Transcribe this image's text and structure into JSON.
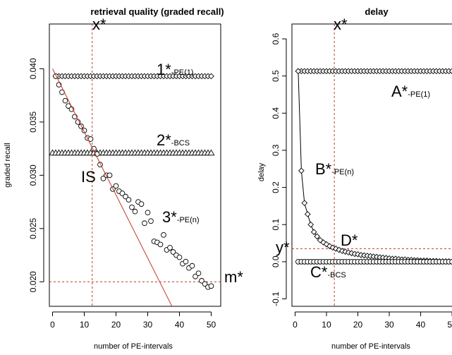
{
  "chart_data": [
    {
      "type": "scatter",
      "title": "retrieval quality (graded recall)",
      "xlabel": "number of PE-intervals",
      "ylabel": "graded recall",
      "xlim": [
        -1,
        53
      ],
      "ylim": [
        0.0177,
        0.0442
      ],
      "xticks": [
        "0",
        "10",
        "20",
        "30",
        "40",
        "50"
      ],
      "yticks": [
        "0.020",
        "0.025",
        "0.030",
        "0.035",
        "0.040"
      ],
      "grid": false,
      "series": [
        {
          "name": "1*-PE(1)",
          "marker": "diamond",
          "line": "none",
          "x": [
            1,
            2,
            3,
            4,
            5,
            6,
            7,
            8,
            9,
            10,
            11,
            12,
            13,
            14,
            15,
            16,
            17,
            18,
            19,
            20,
            21,
            22,
            23,
            24,
            25,
            26,
            27,
            28,
            29,
            30,
            31,
            32,
            33,
            34,
            35,
            36,
            37,
            38,
            39,
            40,
            41,
            42,
            43,
            44,
            45,
            46,
            47,
            48,
            49,
            50
          ],
          "values": [
            0.0393,
            0.0393,
            0.0393,
            0.0393,
            0.0393,
            0.0393,
            0.0393,
            0.0393,
            0.0393,
            0.0393,
            0.0393,
            0.0393,
            0.0393,
            0.0393,
            0.0393,
            0.0393,
            0.0393,
            0.0393,
            0.0393,
            0.0393,
            0.0393,
            0.0393,
            0.0393,
            0.0393,
            0.0393,
            0.0393,
            0.0393,
            0.0393,
            0.0393,
            0.0393,
            0.0393,
            0.0393,
            0.0393,
            0.0393,
            0.0393,
            0.0393,
            0.0393,
            0.0393,
            0.0393,
            0.0393,
            0.0393,
            0.0393,
            0.0393,
            0.0393,
            0.0393,
            0.0393,
            0.0393,
            0.0393,
            0.0393,
            0.0393
          ]
        },
        {
          "name": "2*-BCS",
          "marker": "triangle",
          "line": "none",
          "x": [
            0,
            1,
            2,
            3,
            4,
            5,
            6,
            7,
            8,
            9,
            10,
            11,
            12,
            13,
            14,
            15,
            16,
            17,
            18,
            19,
            20,
            21,
            22,
            23,
            24,
            25,
            26,
            27,
            28,
            29,
            30,
            31,
            32,
            33,
            34,
            35,
            36,
            37,
            38,
            39,
            40,
            41,
            42,
            43,
            44,
            45,
            46,
            47,
            48,
            49,
            50
          ],
          "values": [
            0.0321,
            0.0321,
            0.0321,
            0.0321,
            0.0321,
            0.0321,
            0.0321,
            0.0321,
            0.0321,
            0.0321,
            0.0321,
            0.0321,
            0.0321,
            0.0321,
            0.0321,
            0.0321,
            0.0321,
            0.0321,
            0.0321,
            0.0321,
            0.0321,
            0.0321,
            0.0321,
            0.0321,
            0.0321,
            0.0321,
            0.0321,
            0.0321,
            0.0321,
            0.0321,
            0.0321,
            0.0321,
            0.0321,
            0.0321,
            0.0321,
            0.0321,
            0.0321,
            0.0321,
            0.0321,
            0.0321,
            0.0321,
            0.0321,
            0.0321,
            0.0321,
            0.0321,
            0.0321,
            0.0321,
            0.0321,
            0.0321,
            0.0321,
            0.0321
          ]
        },
        {
          "name": "3*-PE(n)",
          "marker": "circle",
          "line": "none",
          "x": [
            1,
            2,
            3,
            4,
            5,
            6,
            7,
            8,
            9,
            10,
            11,
            12,
            13,
            14,
            15,
            16,
            17,
            18,
            19,
            20,
            21,
            22,
            23,
            24,
            25,
            26,
            27,
            28,
            29,
            30,
            31,
            32,
            33,
            34,
            35,
            36,
            37,
            38,
            39,
            40,
            41,
            42,
            43,
            44,
            45,
            46,
            47,
            48,
            49,
            50
          ],
          "values": [
            0.0393,
            0.0385,
            0.0378,
            0.037,
            0.0365,
            0.0362,
            0.0355,
            0.035,
            0.0346,
            0.0342,
            0.0335,
            0.0334,
            0.0325,
            0.032,
            0.031,
            0.0297,
            0.03,
            0.03,
            0.0287,
            0.029,
            0.0285,
            0.0283,
            0.028,
            0.0277,
            0.027,
            0.0266,
            0.0275,
            0.0273,
            0.0255,
            0.0265,
            0.0257,
            0.0238,
            0.0237,
            0.0235,
            0.0244,
            0.023,
            0.0232,
            0.0228,
            0.0225,
            0.0223,
            0.0217,
            0.0219,
            0.0213,
            0.0215,
            0.0205,
            0.0208,
            0.0201,
            0.0198,
            0.0195,
            0.0196
          ]
        },
        {
          "name": "",
          "marker": "none",
          "line": "solid",
          "color": "#c0392b",
          "x": [
            0,
            40
          ],
          "values": [
            0.04,
            0.0163
          ]
        }
      ],
      "reference_lines": [
        {
          "orientation": "vertical",
          "x": 12.5,
          "label": "x*",
          "color": "#c0392b",
          "style": "dashed"
        },
        {
          "orientation": "horizontal",
          "y": 0.02,
          "label": "m*",
          "color": "#c0392b",
          "style": "dashed"
        }
      ],
      "annotations": [
        {
          "main": "1*",
          "sub": "-PE(1)"
        },
        {
          "main": "2*",
          "sub": "-BCS"
        },
        {
          "main": "IS",
          "sub": ""
        },
        {
          "main": "3*",
          "sub": "-PE(n)"
        }
      ]
    },
    {
      "type": "line",
      "title": "delay",
      "xlabel": "number of PE-intervals",
      "ylabel": "delay",
      "xlim": [
        -1,
        52
      ],
      "ylim": [
        -0.12,
        0.64
      ],
      "xticks": [
        "0",
        "10",
        "20",
        "30",
        "40",
        "50"
      ],
      "yticks": [
        "-0.1",
        "0.0",
        "0.1",
        "0.2",
        "0.3",
        "0.4",
        "0.5",
        "0.6"
      ],
      "grid": false,
      "series": [
        {
          "name": "A*-PE(1)",
          "marker": "diamond",
          "line": "none",
          "x": [
            1,
            2,
            3,
            4,
            5,
            6,
            7,
            8,
            9,
            10,
            11,
            12,
            13,
            14,
            15,
            16,
            17,
            18,
            19,
            20,
            21,
            22,
            23,
            24,
            25,
            26,
            27,
            28,
            29,
            30,
            31,
            32,
            33,
            34,
            35,
            36,
            37,
            38,
            39,
            40,
            41,
            42,
            43,
            44,
            45,
            46,
            47,
            48,
            49,
            50
          ],
          "values": [
            0.513,
            0.513,
            0.513,
            0.513,
            0.513,
            0.513,
            0.513,
            0.513,
            0.513,
            0.513,
            0.513,
            0.513,
            0.513,
            0.513,
            0.513,
            0.513,
            0.513,
            0.513,
            0.513,
            0.513,
            0.513,
            0.513,
            0.513,
            0.513,
            0.513,
            0.513,
            0.513,
            0.513,
            0.513,
            0.513,
            0.513,
            0.513,
            0.513,
            0.513,
            0.513,
            0.513,
            0.513,
            0.513,
            0.513,
            0.513,
            0.513,
            0.513,
            0.513,
            0.513,
            0.513,
            0.513,
            0.513,
            0.513,
            0.513,
            0.513
          ]
        },
        {
          "name": "B*-PE(n)",
          "marker": "diamond",
          "line": "solid",
          "x": [
            1,
            2,
            3,
            4,
            5,
            6,
            7,
            8,
            9,
            10,
            11,
            12,
            13,
            14,
            15,
            16,
            17,
            18,
            19,
            20,
            21,
            22,
            23,
            24,
            25,
            26,
            27,
            28,
            29,
            30,
            31,
            32,
            33,
            34,
            35,
            36,
            37,
            38,
            39,
            40,
            41,
            42,
            43,
            44,
            45,
            46,
            47,
            48,
            49,
            50
          ],
          "values": [
            0.513,
            0.245,
            0.158,
            0.128,
            0.1,
            0.08,
            0.068,
            0.058,
            0.052,
            0.047,
            0.042,
            0.038,
            0.035,
            0.032,
            0.029,
            0.027,
            0.025,
            0.023,
            0.021,
            0.02,
            0.018,
            0.017,
            0.016,
            0.015,
            0.014,
            0.013,
            0.012,
            0.011,
            0.01,
            0.009,
            0.008,
            0.008,
            0.007,
            0.006,
            0.006,
            0.005,
            0.005,
            0.004,
            0.004,
            0.003,
            0.003,
            0.003,
            0.002,
            0.002,
            0.002,
            0.001,
            0.001,
            0.001,
            0.001,
            0.0
          ]
        },
        {
          "name": "C*-BCS",
          "marker": "circle",
          "line": "none",
          "x": [
            1,
            2,
            3,
            4,
            5,
            6,
            7,
            8,
            9,
            10,
            11,
            12,
            13,
            14,
            15,
            16,
            17,
            18,
            19,
            20,
            21,
            22,
            23,
            24,
            25,
            26,
            27,
            28,
            29,
            30,
            31,
            32,
            33,
            34,
            35,
            36,
            37,
            38,
            39,
            40,
            41,
            42,
            43,
            44,
            45,
            46,
            47,
            48,
            49,
            50
          ],
          "values": [
            0,
            0,
            0,
            0,
            0,
            0,
            0,
            0,
            0,
            0,
            0,
            0,
            0,
            0,
            0,
            0,
            0,
            0,
            0,
            0,
            0,
            0,
            0,
            0,
            0,
            0,
            0,
            0,
            0,
            0,
            0,
            0,
            0,
            0,
            0,
            0,
            0,
            0,
            0,
            0,
            0,
            0,
            0,
            0,
            0,
            0,
            0,
            0,
            0,
            0
          ]
        }
      ],
      "reference_lines": [
        {
          "orientation": "vertical",
          "x": 12.5,
          "label": "x*",
          "color": "#c0392b",
          "style": "dashed"
        },
        {
          "orientation": "horizontal",
          "y": 0.035,
          "label": "y*",
          "color": "#c0392b",
          "style": "dashed"
        }
      ],
      "annotations": [
        {
          "main": "A*",
          "sub": "-PE(1)"
        },
        {
          "main": "B*",
          "sub": "-PE(n)"
        },
        {
          "main": "D*",
          "sub": ""
        },
        {
          "main": "C*",
          "sub": "-BCS"
        }
      ]
    }
  ]
}
